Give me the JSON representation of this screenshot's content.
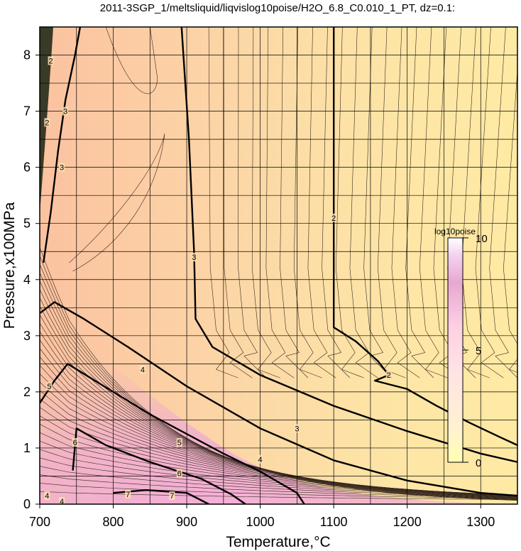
{
  "chart_data": {
    "type": "contour",
    "title": "2011-3SGP_1/meltsliquid/liqvislog10poise/H2O_6.8_C0.010_1_PT, dz=0.1:",
    "xlabel": "Temperature,°C",
    "ylabel": "Pressure,x100MPa",
    "xlim": [
      700,
      1350
    ],
    "ylim": [
      0,
      8.5
    ],
    "xticks": [
      "700",
      "800",
      "900",
      "1000",
      "1100",
      "1200",
      "1300"
    ],
    "yticks": [
      "0",
      "1",
      "2",
      "3",
      "4",
      "5",
      "6",
      "7",
      "8"
    ],
    "grid": true,
    "contour_interval": 0.1,
    "major_contours": [
      {
        "level": "2",
        "points": [
          [
            1100,
            8.5
          ],
          [
            1100,
            3.15
          ],
          [
            1130,
            2.9
          ],
          [
            1160,
            2.55
          ],
          [
            1175,
            2.3
          ],
          [
            1156,
            2.2
          ],
          [
            1200,
            2.05
          ],
          [
            1240,
            1.75
          ],
          [
            1285,
            1.45
          ],
          [
            1325,
            1.2
          ],
          [
            1350,
            1.05
          ]
        ]
      },
      {
        "level": "3",
        "points": [
          [
            893,
            8.5
          ],
          [
            903,
            6.5
          ],
          [
            910,
            4.5
          ],
          [
            912,
            3.3
          ],
          [
            935,
            2.8
          ],
          [
            1000,
            2.3
          ],
          [
            1100,
            1.75
          ],
          [
            1200,
            1.3
          ],
          [
            1300,
            0.9
          ],
          [
            1350,
            0.75
          ]
        ]
      },
      {
        "level": "4",
        "points": [
          [
            700,
            3.4
          ],
          [
            720,
            3.6
          ],
          [
            760,
            3.3
          ],
          [
            820,
            2.8
          ],
          [
            900,
            2.1
          ],
          [
            1000,
            1.35
          ],
          [
            1100,
            0.78
          ],
          [
            1200,
            0.42
          ],
          [
            1300,
            0.2
          ],
          [
            1350,
            0.15
          ]
        ]
      },
      {
        "level": "5",
        "points": [
          [
            700,
            1.8
          ],
          [
            720,
            2.2
          ],
          [
            738,
            2.5
          ],
          [
            775,
            2.2
          ],
          [
            850,
            1.6
          ],
          [
            950,
            0.9
          ],
          [
            1000,
            0.58
          ],
          [
            1050,
            0.2
          ],
          [
            1060,
            0
          ]
        ]
      },
      {
        "level": "6",
        "points": [
          [
            745,
            0.6
          ],
          [
            750,
            1.35
          ],
          [
            790,
            1.05
          ],
          [
            850,
            0.75
          ],
          [
            920,
            0.45
          ],
          [
            960,
            0.18
          ],
          [
            980,
            0
          ]
        ]
      },
      {
        "level": "7",
        "points": [
          [
            800,
            0.2
          ],
          [
            845,
            0.25
          ],
          [
            900,
            0.2
          ],
          [
            930,
            0
          ]
        ]
      },
      {
        "level": "3",
        "points": [
          [
            705,
            4.3
          ],
          [
            715,
            5.2
          ],
          [
            725,
            6.3
          ],
          [
            735,
            7.2
          ],
          [
            748,
            8.0
          ],
          [
            755,
            8.5
          ]
        ]
      }
    ],
    "contour_labels": [
      {
        "text": "2",
        "x": 1100,
        "y": 5.1
      },
      {
        "text": "2",
        "x": 1175,
        "y": 2.3
      },
      {
        "text": "3",
        "x": 910,
        "y": 4.4
      },
      {
        "text": "3",
        "x": 1050,
        "y": 1.35
      },
      {
        "text": "3",
        "x": 730,
        "y": 6.0
      },
      {
        "text": "3",
        "x": 735,
        "y": 7.0
      },
      {
        "text": "4",
        "x": 840,
        "y": 2.4
      },
      {
        "text": "4",
        "x": 1000,
        "y": 0.8
      },
      {
        "text": "5",
        "x": 713,
        "y": 2.1
      },
      {
        "text": "5",
        "x": 890,
        "y": 1.1
      },
      {
        "text": "6",
        "x": 748,
        "y": 1.1
      },
      {
        "text": "6",
        "x": 890,
        "y": 0.55
      },
      {
        "text": "7",
        "x": 820,
        "y": 0.18
      },
      {
        "text": "7",
        "x": 880,
        "y": 0.15
      },
      {
        "text": "2",
        "x": 715,
        "y": 7.9
      },
      {
        "text": "2",
        "x": 710,
        "y": 6.8
      },
      {
        "text": "4",
        "x": 710,
        "y": 0.15
      },
      {
        "text": "4",
        "x": 730,
        "y": 0.05
      }
    ],
    "colorbar": {
      "label": "log10poise",
      "ticks": [
        "0",
        "5",
        "10"
      ],
      "range": [
        0,
        10
      ],
      "colors": [
        "#ffffb0",
        "#ffe6d0",
        "#ffd9e8",
        "#e8b0d0",
        "#301020"
      ]
    },
    "fill_colors": {
      "low": "#ffe8a0",
      "mid": "#fbc89c",
      "high": "#f5a0c8"
    }
  }
}
